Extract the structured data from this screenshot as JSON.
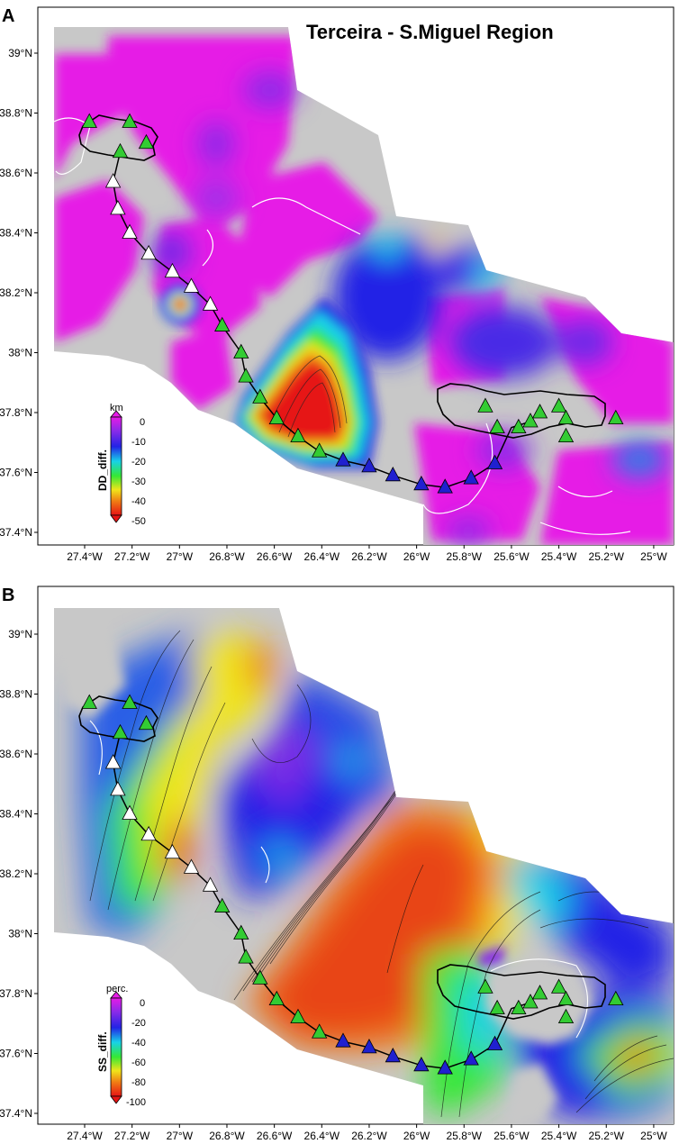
{
  "panels": [
    {
      "label": "A",
      "title": "Terceira - S.Miguel  Region",
      "colorbar": {
        "unit": "km",
        "name": "DD_diff.",
        "ticks": [
          "0",
          "-10",
          "-20",
          "-30",
          "-40",
          "-50"
        ],
        "colors": [
          "#e61be6",
          "#8a2be8",
          "#2323e6",
          "#17d2e8",
          "#35e835",
          "#f0e51a",
          "#f07a14",
          "#e61414"
        ]
      },
      "y_ticks": [
        "39°N",
        "38.8°N",
        "38.6°N",
        "38.4°N",
        "38.2°N",
        "38°N",
        "37.8°N",
        "37.6°N",
        "37.4°N"
      ],
      "x_ticks": [
        "27.4°W",
        "27.2°W",
        "27°W",
        "26.8°W",
        "26.6°W",
        "26.4°W",
        "26.2°W",
        "26°W",
        "25.8°W",
        "25.6°W",
        "25.4°W",
        "25.2°W",
        "25°W"
      ]
    },
    {
      "label": "B",
      "title": "",
      "colorbar": {
        "unit": "perc.",
        "name": "SS_diff.",
        "ticks": [
          "0",
          "-20",
          "-40",
          "-60",
          "-80",
          "-100"
        ],
        "colors": [
          "#e61be6",
          "#8a2be8",
          "#2323e6",
          "#17d2e8",
          "#35e835",
          "#f0e51a",
          "#f07a14",
          "#e61414"
        ]
      },
      "y_ticks": [
        "39°N",
        "38.8°N",
        "38.6°N",
        "38.4°N",
        "38.2°N",
        "38°N",
        "37.8°N",
        "37.6°N",
        "37.4°N"
      ],
      "x_ticks": [
        "27.4°W",
        "27.2°W",
        "27°W",
        "26.8°W",
        "26.6°W",
        "26.4°W",
        "26.2°W",
        "26°W",
        "25.8°W",
        "25.6°W",
        "25.4°W",
        "25.2°W",
        "25°W"
      ]
    }
  ],
  "stations": {
    "green": [
      [
        -27.38,
        38.77
      ],
      [
        -27.21,
        38.77
      ],
      [
        -27.14,
        38.7
      ],
      [
        -27.25,
        38.67
      ],
      [
        -26.82,
        38.09
      ],
      [
        -26.74,
        38.0
      ],
      [
        -26.72,
        37.92
      ],
      [
        -26.66,
        37.85
      ],
      [
        -26.59,
        37.78
      ],
      [
        -26.5,
        37.72
      ],
      [
        -26.41,
        37.67
      ],
      [
        -25.71,
        37.82
      ],
      [
        -25.66,
        37.75
      ],
      [
        -25.57,
        37.75
      ],
      [
        -25.52,
        37.77
      ],
      [
        -25.48,
        37.8
      ],
      [
        -25.4,
        37.82
      ],
      [
        -25.37,
        37.78
      ],
      [
        -25.37,
        37.72
      ],
      [
        -25.16,
        37.78
      ]
    ],
    "white": [
      [
        -27.28,
        38.57
      ],
      [
        -27.26,
        38.48
      ],
      [
        -27.21,
        38.4
      ],
      [
        -27.13,
        38.33
      ],
      [
        -27.03,
        38.27
      ],
      [
        -26.95,
        38.22
      ],
      [
        -26.87,
        38.16
      ]
    ],
    "blue": [
      [
        -26.31,
        37.64
      ],
      [
        -26.2,
        37.62
      ],
      [
        -26.1,
        37.59
      ],
      [
        -25.98,
        37.56
      ],
      [
        -25.88,
        37.55
      ],
      [
        -25.77,
        37.58
      ],
      [
        -25.67,
        37.63
      ]
    ]
  }
}
